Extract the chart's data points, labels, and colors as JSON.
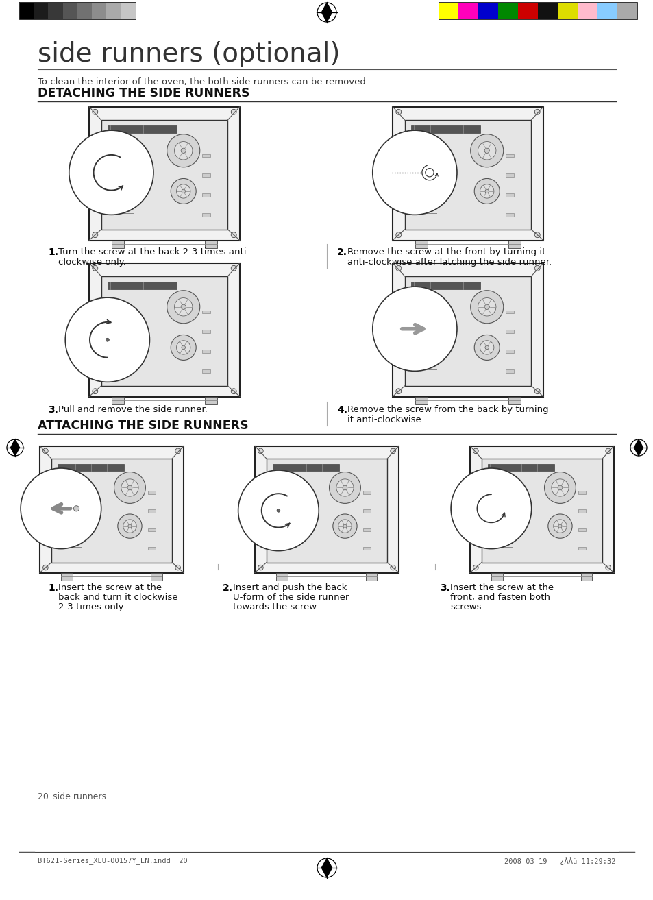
{
  "page_title": "side runners (optional)",
  "subtitle": "To clean the interior of the oven, the both side runners can be removed.",
  "section1_title": "DETACHING THE SIDE RUNNERS",
  "section2_title": "ATTACHING THE SIDE RUNNERS",
  "detach_steps": [
    {
      "num": "1.",
      "text1": "Turn the screw at the back 2-3 times anti-",
      "text2": "clockwise only."
    },
    {
      "num": "2.",
      "text1": "Remove the screw at the front by turning it",
      "text2": "anti-clockwise after latching the side runner."
    },
    {
      "num": "3.",
      "text1": "Pull and remove the side runner.",
      "text2": ""
    },
    {
      "num": "4.",
      "text1": "Remove the screw from the back by turning",
      "text2": "it anti-clockwise."
    }
  ],
  "attach_steps": [
    {
      "num": "1.",
      "text1": "Insert the screw at the",
      "text2": "back and turn it clockwise",
      "text3": "2-3 times only."
    },
    {
      "num": "2.",
      "text1": "Insert and push the back",
      "text2": "U-form of the side runner",
      "text3": "towards the screw."
    },
    {
      "num": "3.",
      "text1": "Insert the screw at the",
      "text2": "front, and fasten both",
      "text3": "screws."
    }
  ],
  "footer_left": "20_side runners",
  "footer_file": "BT621-Series_XEU-00157Y_EN.indd  20",
  "footer_date": "2008-03-19   ¿ÀÀü 11:29:32",
  "bg_color": "#ffffff",
  "grayscale_colors": [
    "#000000",
    "#1c1c1c",
    "#383838",
    "#555555",
    "#717171",
    "#8d8d8d",
    "#aaaaaa",
    "#c6c6c6"
  ],
  "color_swatches": [
    "#ffff00",
    "#ff00bb",
    "#0000cc",
    "#008800",
    "#cc0000",
    "#111111",
    "#dddd00",
    "#ffbbcc",
    "#88ccff",
    "#aaaaaa"
  ]
}
